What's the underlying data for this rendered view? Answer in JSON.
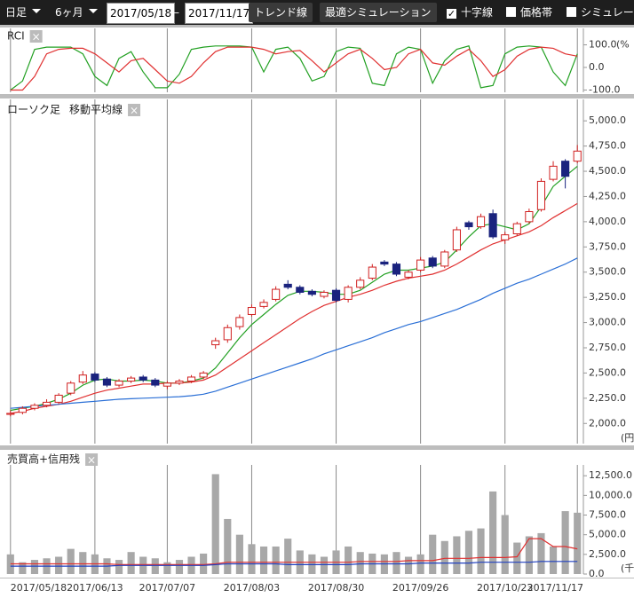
{
  "toolbar": {
    "period_type": "日足",
    "range": "6ヶ月",
    "start_date": "2017/05/18",
    "separator": "—",
    "end_date": "2017/11/17",
    "buttons": [
      "トレンド線",
      "最適シミュレーション"
    ],
    "checkboxes": [
      {
        "label": "十字線",
        "checked": true
      },
      {
        "label": "価格帯",
        "checked": false
      },
      {
        "label": "シミュレーション",
        "checked": false
      }
    ]
  },
  "chart_data": [
    {
      "type": "line",
      "title": "RCI",
      "close_label": "×",
      "unit": "(%",
      "ylim": [
        -110,
        110
      ],
      "yticks": [
        {
          "value": 100,
          "label": "100.0"
        },
        {
          "value": 0,
          "label": "0.0"
        },
        {
          "value": -100,
          "label": "-100.0"
        }
      ],
      "series": [
        {
          "color": "#22a022",
          "values": [
            -100,
            -60,
            80,
            90,
            90,
            90,
            60,
            -40,
            -80,
            40,
            70,
            -20,
            -90,
            -90,
            -30,
            80,
            90,
            95,
            95,
            95,
            90,
            -20,
            80,
            90,
            40,
            -60,
            -40,
            70,
            90,
            85,
            -70,
            -80,
            60,
            90,
            80,
            -70,
            30,
            80,
            95,
            -90,
            -80,
            60,
            90,
            95,
            90,
            -20,
            -80,
            60
          ]
        },
        {
          "color": "#e03030",
          "values": [
            -100,
            -100,
            -40,
            60,
            80,
            85,
            85,
            60,
            20,
            -20,
            30,
            40,
            -10,
            -60,
            -70,
            -40,
            20,
            70,
            90,
            90,
            90,
            80,
            60,
            70,
            75,
            30,
            -20,
            20,
            60,
            80,
            40,
            -10,
            0,
            60,
            80,
            20,
            10,
            50,
            80,
            30,
            -40,
            -10,
            50,
            80,
            90,
            85,
            60,
            50
          ]
        }
      ]
    },
    {
      "type": "candlestick",
      "title": "ローソク足",
      "overlay_label": "移動平均線",
      "close_label": "×",
      "unit": "(円",
      "ylim": [
        1800,
        5160
      ],
      "yticks": [
        {
          "value": 2000,
          "label": "2,000.0"
        },
        {
          "value": 2250,
          "label": "2,250.0"
        },
        {
          "value": 2500,
          "label": "2,500.0"
        },
        {
          "value": 2750,
          "label": "2,750.0"
        },
        {
          "value": 3000,
          "label": "3,000.0"
        },
        {
          "value": 3250,
          "label": "3,250.0"
        },
        {
          "value": 3500,
          "label": "3,500.0"
        },
        {
          "value": 3750,
          "label": "3,750.0"
        },
        {
          "value": 4000,
          "label": "4,000.0"
        },
        {
          "value": 4250,
          "label": "4,250.0"
        },
        {
          "value": 4500,
          "label": "4,500.0"
        },
        {
          "value": 4750,
          "label": "4,750.0"
        },
        {
          "value": 5000,
          "label": "5,000.0"
        }
      ],
      "up_color": "#d02020",
      "down_color": "#1a237e",
      "open": [
        2090,
        2110,
        2150,
        2180,
        2210,
        2300,
        2410,
        2490,
        2440,
        2380,
        2420,
        2460,
        2430,
        2370,
        2400,
        2420,
        2460,
        2780,
        2830,
        2960,
        3080,
        3160,
        3230,
        3380,
        3350,
        3310,
        3260,
        3320,
        3230,
        3350,
        3440,
        3600,
        3580,
        3450,
        3520,
        3640,
        3560,
        3720,
        3990,
        3950,
        4080,
        3820,
        3880,
        4000,
        4120,
        4420,
        4600,
        4600
      ],
      "high": [
        2130,
        2170,
        2200,
        2240,
        2300,
        2420,
        2520,
        2510,
        2460,
        2440,
        2470,
        2480,
        2450,
        2420,
        2440,
        2480,
        2520,
        2850,
        2980,
        3080,
        3180,
        3230,
        3360,
        3420,
        3370,
        3330,
        3320,
        3340,
        3370,
        3450,
        3580,
        3620,
        3600,
        3520,
        3650,
        3660,
        3720,
        3950,
        4010,
        4080,
        4120,
        3900,
        4000,
        4130,
        4430,
        4600,
        4620,
        4760
      ],
      "low": [
        2070,
        2090,
        2130,
        2160,
        2190,
        2280,
        2390,
        2410,
        2360,
        2360,
        2400,
        2410,
        2360,
        2340,
        2380,
        2400,
        2440,
        2740,
        2800,
        2930,
        3060,
        3140,
        3210,
        3330,
        3280,
        3260,
        3240,
        3200,
        3200,
        3330,
        3420,
        3560,
        3460,
        3430,
        3500,
        3540,
        3540,
        3700,
        3920,
        3930,
        3830,
        3780,
        3860,
        3980,
        4100,
        4400,
        4330,
        4580
      ],
      "close": [
        2100,
        2150,
        2180,
        2210,
        2280,
        2400,
        2480,
        2430,
        2380,
        2420,
        2450,
        2430,
        2380,
        2400,
        2420,
        2460,
        2500,
        2820,
        2950,
        3050,
        3150,
        3200,
        3330,
        3350,
        3300,
        3280,
        3300,
        3220,
        3350,
        3420,
        3550,
        3580,
        3480,
        3500,
        3620,
        3560,
        3700,
        3920,
        3950,
        4050,
        3850,
        3870,
        3980,
        4100,
        4400,
        4550,
        4450,
        4700
      ],
      "series": [
        {
          "color": "#22a022",
          "values": [
            2130,
            2150,
            2170,
            2200,
            2240,
            2300,
            2380,
            2430,
            2440,
            2420,
            2420,
            2430,
            2420,
            2400,
            2400,
            2420,
            2450,
            2550,
            2700,
            2850,
            2980,
            3080,
            3180,
            3270,
            3310,
            3310,
            3300,
            3280,
            3280,
            3320,
            3400,
            3480,
            3520,
            3520,
            3540,
            3560,
            3600,
            3720,
            3850,
            3960,
            3980,
            3950,
            3920,
            3980,
            4150,
            4350,
            4450,
            4550
          ]
        },
        {
          "color": "#e03030",
          "values": [
            2100,
            2120,
            2150,
            2170,
            2190,
            2220,
            2260,
            2300,
            2330,
            2350,
            2370,
            2390,
            2390,
            2400,
            2400,
            2410,
            2430,
            2480,
            2560,
            2640,
            2720,
            2800,
            2880,
            2960,
            3040,
            3110,
            3170,
            3210,
            3250,
            3280,
            3320,
            3370,
            3410,
            3440,
            3460,
            3480,
            3520,
            3580,
            3650,
            3720,
            3780,
            3820,
            3860,
            3900,
            3960,
            4040,
            4110,
            4180
          ]
        },
        {
          "color": "#2a6fd6",
          "values": [
            2150,
            2160,
            2170,
            2180,
            2190,
            2200,
            2210,
            2220,
            2230,
            2240,
            2245,
            2250,
            2255,
            2260,
            2265,
            2275,
            2290,
            2320,
            2360,
            2400,
            2440,
            2480,
            2520,
            2560,
            2600,
            2640,
            2690,
            2730,
            2770,
            2810,
            2850,
            2900,
            2940,
            2980,
            3010,
            3050,
            3090,
            3130,
            3180,
            3230,
            3290,
            3340,
            3390,
            3430,
            3480,
            3530,
            3580,
            3640
          ]
        }
      ]
    },
    {
      "type": "bar",
      "title": "売買高+信用残",
      "close_label": "×",
      "unit": "(千",
      "ylim": [
        0,
        13200
      ],
      "yticks": [
        {
          "value": 0,
          "label": "0.0"
        },
        {
          "value": 2500,
          "label": "2,500.0"
        },
        {
          "value": 5000,
          "label": "5,000.0"
        },
        {
          "value": 7500,
          "label": "7,500.0"
        },
        {
          "value": 10000,
          "label": "10,000.0"
        },
        {
          "value": 12500,
          "label": "12,500.0"
        }
      ],
      "categories": [
        "2017/05/18",
        null,
        null,
        null,
        null,
        null,
        null,
        "2017/06/13",
        null,
        null,
        null,
        null,
        null,
        "2017/07/07",
        null,
        null,
        null,
        null,
        null,
        null,
        "2017/08/03",
        null,
        null,
        null,
        null,
        null,
        null,
        "2017/08/30",
        null,
        null,
        null,
        null,
        null,
        null,
        "2017/09/26",
        null,
        null,
        null,
        null,
        null,
        null,
        "2017/10/23",
        null,
        null,
        null,
        null,
        null,
        "2017/11/17"
      ],
      "color": "#a8a8a8",
      "values": [
        2500,
        1500,
        1800,
        2000,
        2200,
        3200,
        2800,
        2500,
        2000,
        1800,
        2800,
        2200,
        2000,
        1500,
        1800,
        2200,
        2600,
        12700,
        7000,
        5000,
        3800,
        3500,
        3500,
        4500,
        3000,
        2500,
        2200,
        3000,
        3500,
        2800,
        2600,
        2500,
        2800,
        2200,
        2500,
        5000,
        4200,
        4800,
        5500,
        5800,
        10500,
        7500,
        4000,
        4800,
        5200,
        3500,
        8000,
        7800
      ],
      "series": [
        {
          "type": "line",
          "color": "#e03030",
          "values": [
            1300,
            1300,
            1300,
            1300,
            1300,
            1300,
            1300,
            1300,
            1300,
            1200,
            1200,
            1200,
            1200,
            1200,
            1200,
            1200,
            1200,
            1300,
            1500,
            1500,
            1500,
            1500,
            1500,
            1500,
            1500,
            1500,
            1500,
            1500,
            1500,
            1600,
            1600,
            1600,
            1600,
            1700,
            1700,
            1700,
            2000,
            2000,
            2000,
            2100,
            2100,
            2100,
            2200,
            4500,
            4500,
            3500,
            3500,
            3200
          ]
        },
        {
          "type": "line",
          "color": "#2040c0",
          "values": [
            1000,
            1000,
            1000,
            1000,
            1000,
            1000,
            1000,
            1000,
            1000,
            1100,
            1100,
            1100,
            1100,
            1100,
            1100,
            1100,
            1100,
            1200,
            1300,
            1300,
            1300,
            1300,
            1300,
            1200,
            1200,
            1200,
            1200,
            1200,
            1200,
            1300,
            1300,
            1300,
            1300,
            1300,
            1400,
            1400,
            1400,
            1400,
            1400,
            1500,
            1500,
            1500,
            1500,
            1500,
            1600,
            1600,
            1600,
            1600
          ]
        }
      ]
    }
  ]
}
